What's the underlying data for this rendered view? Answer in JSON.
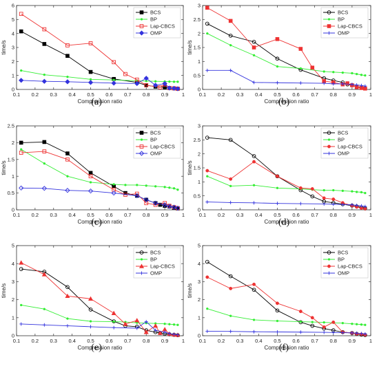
{
  "figure": {
    "xlabel": "Compression ratio",
    "ylabel": "time/s",
    "xlim": [
      0.1,
      1.0
    ],
    "xticks": [
      "0.1",
      "0.2",
      "0.3",
      "0.4",
      "0.5",
      "0.6",
      "0.7",
      "0.8",
      "0.9",
      "1"
    ],
    "series_styles": {
      "BCS": {
        "color": "#000000",
        "marker": "square"
      },
      "BP": {
        "color": "#33ee33",
        "marker": "dot"
      },
      "Lap-CBCS": {
        "color": "#ee3333",
        "marker": "open-square"
      },
      "OMP": {
        "color": "#3333dd",
        "marker": "diamond"
      }
    }
  },
  "chart_data": [
    {
      "type": "line",
      "panel": "(a)",
      "xlabel": "Compression ratio",
      "ylabel": "time/s",
      "ylim": [
        0,
        6
      ],
      "yticks": [
        "0",
        "1",
        "2",
        "3",
        "4",
        "5",
        "6"
      ],
      "legend": "top-right",
      "series": [
        {
          "name": "BCS",
          "marker": "square",
          "x": [
            0.125,
            0.25,
            0.375,
            0.5,
            0.625,
            0.75,
            0.8,
            0.85,
            0.9,
            0.925,
            0.95,
            0.97
          ],
          "y": [
            4.15,
            3.25,
            2.4,
            1.25,
            0.75,
            0.5,
            0.3,
            0.2,
            0.15,
            0.1,
            0.08,
            0.05
          ]
        },
        {
          "name": "BP",
          "marker": "dot",
          "x": [
            0.125,
            0.25,
            0.375,
            0.5,
            0.625,
            0.75,
            0.8,
            0.85,
            0.9,
            0.925,
            0.95,
            0.97
          ],
          "y": [
            1.35,
            1.05,
            0.9,
            0.72,
            0.68,
            0.62,
            0.6,
            0.58,
            0.57,
            0.56,
            0.55,
            0.55
          ]
        },
        {
          "name": "Lap-CBCS",
          "marker": "open-square",
          "x": [
            0.125,
            0.25,
            0.375,
            0.5,
            0.625,
            0.6875,
            0.75,
            0.8,
            0.875,
            0.9,
            0.925,
            0.95,
            0.97
          ],
          "y": [
            5.4,
            4.3,
            3.15,
            3.3,
            1.95,
            1.1,
            0.7,
            0.3,
            0.15,
            0.35,
            0.1,
            0.08,
            0.05
          ]
        },
        {
          "name": "OMP",
          "marker": "diamond",
          "x": [
            0.125,
            0.25,
            0.375,
            0.5,
            0.625,
            0.75,
            0.8,
            0.85,
            0.9,
            0.925,
            0.95,
            0.97
          ],
          "y": [
            0.65,
            0.58,
            0.55,
            0.5,
            0.45,
            0.42,
            0.8,
            0.3,
            0.42,
            0.1,
            0.08,
            0.05
          ]
        }
      ]
    },
    {
      "type": "line",
      "panel": "(b)",
      "xlabel": "Compression ratio",
      "ylabel": "time/s",
      "ylim": [
        0,
        3
      ],
      "yticks": [
        "0",
        "0.5",
        "1",
        "1.5",
        "2",
        "2.5",
        "3"
      ],
      "legend": "top-right",
      "series": [
        {
          "name": "BCS",
          "marker": "circle",
          "x": [
            0.125,
            0.25,
            0.375,
            0.5,
            0.625,
            0.75,
            0.8,
            0.85,
            0.875,
            0.9,
            0.925,
            0.95,
            0.97
          ],
          "y": [
            2.35,
            1.92,
            1.7,
            1.1,
            0.7,
            0.4,
            0.32,
            0.25,
            0.18,
            0.15,
            0.1,
            0.06,
            0.04
          ]
        },
        {
          "name": "BP",
          "marker": "dot",
          "x": [
            0.125,
            0.25,
            0.375,
            0.5,
            0.625,
            0.75,
            0.8,
            0.85,
            0.9,
            0.925,
            0.95,
            0.97
          ],
          "y": [
            2.0,
            1.58,
            1.22,
            0.82,
            0.75,
            0.64,
            0.62,
            0.6,
            0.58,
            0.55,
            0.52,
            0.5
          ]
        },
        {
          "name": "Lap-CBCS",
          "marker": "filled-square",
          "x": [
            0.125,
            0.25,
            0.375,
            0.5,
            0.625,
            0.6875,
            0.75,
            0.8,
            0.85,
            0.875,
            0.9,
            0.925,
            0.95,
            0.97
          ],
          "y": [
            2.92,
            2.45,
            1.5,
            1.8,
            1.45,
            0.78,
            0.3,
            0.25,
            0.18,
            0.22,
            0.15,
            0.08,
            0.05,
            0.03
          ]
        },
        {
          "name": "OMP",
          "marker": "plus",
          "x": [
            0.125,
            0.25,
            0.375,
            0.5,
            0.625,
            0.75,
            0.8,
            0.85,
            0.9,
            0.925,
            0.95,
            0.97
          ],
          "y": [
            0.68,
            0.68,
            0.25,
            0.24,
            0.23,
            0.22,
            0.2,
            0.2,
            0.18,
            0.16,
            0.14,
            0.12
          ]
        }
      ]
    },
    {
      "type": "line",
      "panel": "(c)",
      "xlabel": "Compression ratio",
      "ylabel": "time/s",
      "ylim": [
        0,
        2.5
      ],
      "yticks": [
        "0",
        "0.5",
        "1",
        "1.5",
        "2",
        "2.5"
      ],
      "legend": "top-right",
      "series": [
        {
          "name": "BCS",
          "marker": "square",
          "x": [
            0.125,
            0.25,
            0.375,
            0.5,
            0.625,
            0.6875,
            0.75,
            0.8,
            0.85,
            0.875,
            0.9,
            0.925,
            0.95,
            0.97
          ],
          "y": [
            2.0,
            2.02,
            1.68,
            1.1,
            0.7,
            0.5,
            0.42,
            0.3,
            0.2,
            0.15,
            0.12,
            0.1,
            0.06,
            0.04
          ]
        },
        {
          "name": "BP",
          "marker": "dot",
          "x": [
            0.125,
            0.25,
            0.375,
            0.5,
            0.625,
            0.6875,
            0.75,
            0.8,
            0.85,
            0.9,
            0.925,
            0.95,
            0.97
          ],
          "y": [
            1.8,
            1.38,
            1.0,
            0.82,
            0.76,
            0.74,
            0.74,
            0.72,
            0.7,
            0.68,
            0.66,
            0.64,
            0.6
          ]
        },
        {
          "name": "Lap-CBCS",
          "marker": "open-square",
          "x": [
            0.125,
            0.25,
            0.375,
            0.5,
            0.625,
            0.6875,
            0.75,
            0.8,
            0.85,
            0.9,
            0.925,
            0.95,
            0.97
          ],
          "y": [
            1.7,
            1.74,
            1.5,
            1.0,
            0.6,
            0.45,
            0.48,
            0.2,
            0.15,
            0.2,
            0.12,
            0.08,
            0.05
          ]
        },
        {
          "name": "OMP",
          "marker": "open-diamond",
          "x": [
            0.125,
            0.25,
            0.375,
            0.5,
            0.625,
            0.75,
            0.8,
            0.85,
            0.9,
            0.925,
            0.95,
            0.97
          ],
          "y": [
            0.65,
            0.64,
            0.58,
            0.56,
            0.5,
            0.42,
            0.3,
            0.2,
            0.15,
            0.1,
            0.08,
            0.05
          ]
        }
      ]
    },
    {
      "type": "line",
      "panel": "(d)",
      "xlabel": "Compression ratio",
      "ylabel": "time/s",
      "ylim": [
        0,
        3
      ],
      "yticks": [
        "0",
        "0.5",
        "1",
        "1.5",
        "2",
        "2.5",
        "3"
      ],
      "legend": "top-right",
      "series": [
        {
          "name": "BCS",
          "marker": "circle",
          "x": [
            0.125,
            0.25,
            0.375,
            0.5,
            0.625,
            0.6875,
            0.75,
            0.8,
            0.85,
            0.9,
            0.925,
            0.95,
            0.97
          ],
          "y": [
            2.58,
            2.5,
            1.92,
            1.2,
            0.7,
            0.48,
            0.3,
            0.25,
            0.2,
            0.15,
            0.12,
            0.08,
            0.05
          ]
        },
        {
          "name": "BP",
          "marker": "dot",
          "x": [
            0.125,
            0.25,
            0.375,
            0.5,
            0.625,
            0.6875,
            0.75,
            0.8,
            0.85,
            0.9,
            0.925,
            0.95,
            0.97
          ],
          "y": [
            1.2,
            0.85,
            0.88,
            0.78,
            0.75,
            0.72,
            0.7,
            0.7,
            0.68,
            0.66,
            0.64,
            0.63,
            0.6
          ]
        },
        {
          "name": "Lap-CBCS",
          "marker": "filled-dot",
          "x": [
            0.125,
            0.25,
            0.375,
            0.5,
            0.625,
            0.6875,
            0.75,
            0.8,
            0.85,
            0.9,
            0.925,
            0.95,
            0.97
          ],
          "y": [
            1.4,
            1.1,
            1.72,
            1.2,
            0.78,
            0.75,
            0.42,
            0.38,
            0.25,
            0.15,
            0.1,
            0.06,
            0.04
          ]
        },
        {
          "name": "OMP",
          "marker": "plus",
          "x": [
            0.125,
            0.25,
            0.375,
            0.5,
            0.625,
            0.75,
            0.8,
            0.85,
            0.9,
            0.925,
            0.95,
            0.97
          ],
          "y": [
            0.28,
            0.26,
            0.25,
            0.23,
            0.22,
            0.21,
            0.2,
            0.19,
            0.18,
            0.16,
            0.14,
            0.12
          ]
        }
      ]
    },
    {
      "type": "line",
      "panel": "(e)",
      "xlabel": "Compression ratio",
      "ylabel": "time/s",
      "ylim": [
        0,
        5
      ],
      "yticks": [
        "0",
        "1",
        "2",
        "3",
        "4",
        "5"
      ],
      "legend": "top-right",
      "series": [
        {
          "name": "BCS",
          "marker": "circle",
          "x": [
            0.125,
            0.25,
            0.375,
            0.5,
            0.625,
            0.6875,
            0.75,
            0.8,
            0.85,
            0.875,
            0.9,
            0.925,
            0.95,
            0.97
          ],
          "y": [
            3.7,
            3.55,
            2.7,
            1.45,
            0.8,
            0.55,
            0.5,
            0.3,
            0.2,
            0.15,
            0.1,
            0.08,
            0.05,
            0.03
          ]
        },
        {
          "name": "BP",
          "marker": "dot",
          "x": [
            0.125,
            0.25,
            0.375,
            0.5,
            0.625,
            0.6875,
            0.75,
            0.8,
            0.85,
            0.9,
            0.925,
            0.95,
            0.97
          ],
          "y": [
            1.7,
            1.48,
            0.95,
            0.8,
            0.78,
            0.76,
            0.72,
            0.7,
            0.68,
            0.66,
            0.64,
            0.62,
            0.6
          ]
        },
        {
          "name": "Lap-CBCS",
          "marker": "filled-triangle",
          "x": [
            0.125,
            0.25,
            0.375,
            0.5,
            0.625,
            0.6875,
            0.75,
            0.8,
            0.85,
            0.875,
            0.9,
            0.925,
            0.95,
            0.97
          ],
          "y": [
            4.05,
            3.4,
            2.2,
            2.05,
            1.25,
            0.65,
            0.85,
            0.2,
            0.55,
            0.15,
            0.35,
            0.1,
            0.06,
            0.04
          ]
        },
        {
          "name": "OMP",
          "marker": "plus",
          "x": [
            0.125,
            0.25,
            0.375,
            0.5,
            0.625,
            0.75,
            0.8,
            0.85,
            0.9,
            0.925,
            0.95,
            0.97
          ],
          "y": [
            0.65,
            0.6,
            0.55,
            0.5,
            0.45,
            0.42,
            0.78,
            0.3,
            0.2,
            0.12,
            0.08,
            0.05
          ]
        }
      ]
    },
    {
      "type": "line",
      "panel": "(f)",
      "xlabel": "Compression ratio",
      "ylabel": "time/s",
      "ylim": [
        0,
        5
      ],
      "yticks": [
        "0",
        "1",
        "2",
        "3",
        "4",
        "5"
      ],
      "legend": "top-right",
      "series": [
        {
          "name": "BCS",
          "marker": "circle",
          "x": [
            0.125,
            0.25,
            0.375,
            0.5,
            0.625,
            0.6875,
            0.75,
            0.8,
            0.85,
            0.9,
            0.925,
            0.95,
            0.97
          ],
          "y": [
            4.1,
            3.3,
            2.55,
            1.4,
            0.75,
            0.55,
            0.4,
            0.3,
            0.2,
            0.15,
            0.1,
            0.06,
            0.04
          ]
        },
        {
          "name": "BP",
          "marker": "dot",
          "x": [
            0.125,
            0.25,
            0.375,
            0.5,
            0.625,
            0.6875,
            0.75,
            0.8,
            0.85,
            0.9,
            0.925,
            0.95,
            0.97
          ],
          "y": [
            1.5,
            1.1,
            0.88,
            0.82,
            0.78,
            0.76,
            0.74,
            0.72,
            0.7,
            0.66,
            0.64,
            0.62,
            0.6
          ]
        },
        {
          "name": "Lap-CBCS",
          "marker": "filled-dot",
          "x": [
            0.125,
            0.25,
            0.375,
            0.5,
            0.625,
            0.6875,
            0.75,
            0.8,
            0.85,
            0.9,
            0.925,
            0.95,
            0.97
          ],
          "y": [
            3.25,
            2.62,
            2.85,
            1.8,
            1.35,
            1.0,
            0.48,
            0.75,
            0.2,
            0.15,
            0.1,
            0.08,
            0.05
          ]
        },
        {
          "name": "OMP",
          "marker": "plus",
          "x": [
            0.125,
            0.25,
            0.375,
            0.5,
            0.625,
            0.75,
            0.8,
            0.85,
            0.9,
            0.925,
            0.95,
            0.97
          ],
          "y": [
            0.25,
            0.24,
            0.22,
            0.21,
            0.2,
            0.19,
            0.18,
            0.17,
            0.16,
            0.14,
            0.12,
            0.1
          ]
        }
      ]
    }
  ]
}
